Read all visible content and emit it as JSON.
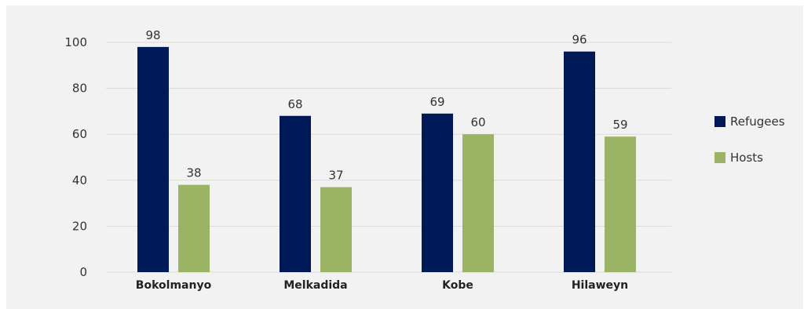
{
  "chart_data": {
    "type": "bar",
    "categories": [
      "Bokolmanyo",
      "Melkadida",
      "Kobe",
      "Hilaweyn"
    ],
    "series": [
      {
        "name": "Refugees",
        "values": [
          98,
          68,
          69,
          96
        ],
        "color": "#001a57"
      },
      {
        "name": "Hosts",
        "values": [
          38,
          37,
          60,
          59
        ],
        "color": "#9bb365"
      }
    ],
    "y_ticks": [
      "0",
      "20",
      "40",
      "60",
      "80",
      "100"
    ],
    "ylim": [
      0,
      100
    ],
    "grid": true,
    "legend_position": "right",
    "background_color": "#f2f2f2",
    "gridline_color": "#d9d9d9"
  }
}
